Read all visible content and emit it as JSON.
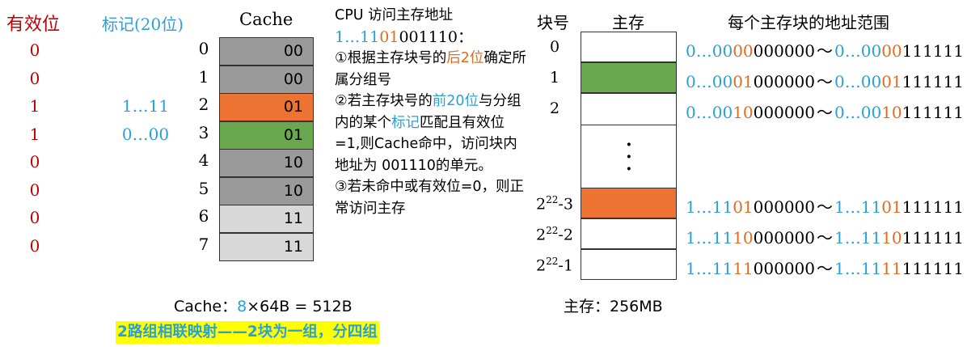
{
  "headers": {
    "valid": "有效位",
    "tag": "标记(20位)",
    "cache": "Cache",
    "block_no": "块号",
    "main_mem": "主存",
    "addr_range": "每个主存块的地址范围"
  },
  "cache_rows": [
    {
      "index": "0",
      "valid": "0",
      "tag": "",
      "set": "00",
      "color": "#9a9a9a"
    },
    {
      "index": "1",
      "valid": "0",
      "tag": "",
      "set": "00",
      "color": "#9a9a9a"
    },
    {
      "index": "2",
      "valid": "1",
      "tag": "1…11",
      "set": "01",
      "color": "#ec7332"
    },
    {
      "index": "3",
      "valid": "1",
      "tag": "0…00",
      "set": "01",
      "color": "#6aa84f"
    },
    {
      "index": "4",
      "valid": "0",
      "tag": "",
      "set": "10",
      "color": "#9a9a9a"
    },
    {
      "index": "5",
      "valid": "0",
      "tag": "",
      "set": "10",
      "color": "#9a9a9a"
    },
    {
      "index": "6",
      "valid": "0",
      "tag": "",
      "set": "11",
      "color": "#d8d8d8"
    },
    {
      "index": "7",
      "valid": "0",
      "tag": "",
      "set": "11",
      "color": "#d8d8d8"
    }
  ],
  "note": {
    "title": "CPU 访问主存地址",
    "address_prefix": "1…11",
    "address_set": "01",
    "address_rest": "001110",
    "address_colon": "：",
    "step1_a": "①根据主存块号的",
    "step1_hl": "后2位",
    "step1_b": "确定所属分组号",
    "step2_a": "②若主存块号的",
    "step2_hl1": "前20位",
    "step2_b": "与分组内的某个",
    "step2_hl2": "标记",
    "step2_c": "匹配且有效位=1,则Cache命中，访问块内地址为 001110的单元。",
    "step3": "③若未命中或有效位=0，则正常访问主存"
  },
  "cache_size": {
    "label": "Cache：",
    "count": "8",
    "rest": "×64B = 512B"
  },
  "summary": "2路组相联映射——2块为一组，分四组",
  "main_memory": {
    "size_label": "主存：256MB",
    "vdots": ":"
  },
  "mem_blocks": [
    {
      "label": "0",
      "label_sup": "",
      "color": "#ffffff",
      "addr_a_pre": "0…00",
      "addr_a_mid": "00",
      "addr_a_post": "000000",
      "addr_b_pre": "0…00",
      "addr_b_mid": "00",
      "addr_b_post": "111111",
      "pre_color": "#2aa1d6"
    },
    {
      "label": "1",
      "label_sup": "",
      "color": "#6aa84f",
      "addr_a_pre": "0…00",
      "addr_a_mid": "01",
      "addr_a_post": "000000",
      "addr_b_pre": "0…00",
      "addr_b_mid": "01",
      "addr_b_post": "111111",
      "pre_color": "#2aa1d6"
    },
    {
      "label": "2",
      "label_sup": "",
      "color": "#ffffff",
      "addr_a_pre": "0…00",
      "addr_a_mid": "10",
      "addr_a_post": "000000",
      "addr_b_pre": "0…00",
      "addr_b_mid": "10",
      "addr_b_post": "111111",
      "pre_color": "#2aa1d6"
    },
    {
      "label": "2",
      "label_sup": "22",
      "label_suffix": "-3",
      "color": "#ec7332",
      "addr_a_pre": "1…11",
      "addr_a_mid": "01",
      "addr_a_post": "000000",
      "addr_b_pre": "1…11",
      "addr_b_mid": "01",
      "addr_b_post": "111111",
      "pre_color": "#2aa1d6"
    },
    {
      "label": "2",
      "label_sup": "22",
      "label_suffix": "-2",
      "color": "#ffffff",
      "addr_a_pre": "1…11",
      "addr_a_mid": "10",
      "addr_a_post": "000000",
      "addr_b_pre": "1…11",
      "addr_b_mid": "10",
      "addr_b_post": "111111",
      "pre_color": "#2aa1d6"
    },
    {
      "label": "2",
      "label_sup": "22",
      "label_suffix": "-1",
      "color": "#ffffff",
      "addr_a_pre": "1…11",
      "addr_a_mid": "11",
      "addr_a_post": "000000",
      "addr_b_pre": "1…11",
      "addr_b_mid": "11",
      "addr_b_post": "111111",
      "pre_color": "#2aa1d6"
    }
  ],
  "separator": "～"
}
